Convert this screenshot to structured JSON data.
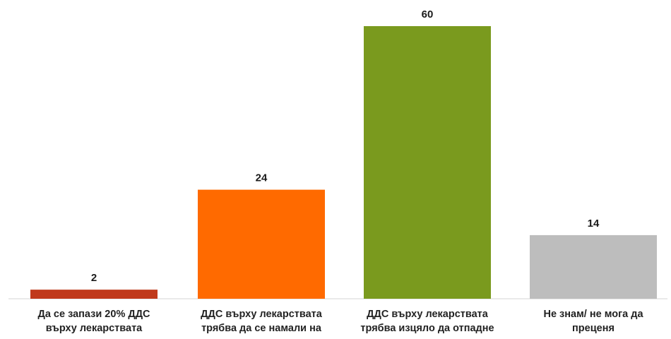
{
  "chart_data": {
    "type": "bar",
    "categories": [
      [
        "Да се запази 20% ДДС",
        "върху лекарствата"
      ],
      [
        "ДДС върху лекарствата",
        "трябва да се намали на"
      ],
      [
        "ДДС върху лекарствата",
        "трябва изцяло да отпадне"
      ],
      [
        "Не знам/ не мога да",
        "преценя"
      ]
    ],
    "values": [
      2,
      24,
      60,
      14
    ],
    "value_labels": [
      "2",
      "24",
      "60",
      "14"
    ],
    "colors": [
      "#c0391b",
      "#ff6a00",
      "#7a9a1e",
      "#bdbdbd"
    ],
    "ylim": [
      0,
      60
    ],
    "grid": false,
    "legend": "none"
  }
}
